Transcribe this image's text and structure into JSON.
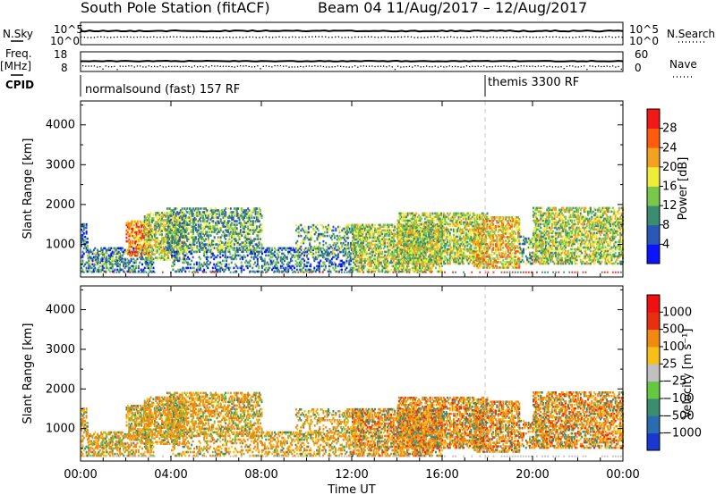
{
  "header": {
    "title": "South Pole Station (fitACF)",
    "beam_date": "Beam 04  11/Aug/2017 – 12/Aug/2017"
  },
  "side_labels": {
    "nsky": "N.Sky",
    "nsearch": "N.Search",
    "freq_top": "Freq.",
    "freq_unit": "[MHz]",
    "nave": "Nave",
    "cpid": "CPID"
  },
  "panel_ticks": {
    "nsky_top": "10^5",
    "nsky_bot": "10^0",
    "nsearch_top": "10^5",
    "nsearch_bot": "10^0",
    "freq_top": "18",
    "freq_bot": "8",
    "nave_top": "60",
    "nave_bot": "0"
  },
  "cpid_labels": {
    "mode1": "normalsound (fast) 157 RF",
    "mode2": "themis 3300 RF"
  },
  "chart_data": [
    {
      "type": "heatmap",
      "panel": "power",
      "ylabel": "Slant Range [km]",
      "ylim": [
        180,
        4600
      ],
      "yticks": [
        1000,
        2000,
        3000,
        4000
      ],
      "xlim": [
        0,
        24
      ],
      "colorbar": {
        "label": "Power [dB]",
        "ticks": [
          "4",
          "8",
          "12",
          "16",
          "20",
          "24",
          "28"
        ],
        "colors": [
          "#0a14ff",
          "#2a58b8",
          "#3c8c70",
          "#78c84a",
          "#f0ec3a",
          "#f4a020",
          "#ff5c10",
          "#f01818"
        ]
      }
    },
    {
      "type": "heatmap",
      "panel": "velocity",
      "ylabel": "Slant Range [km]",
      "ylim": [
        180,
        4600
      ],
      "yticks": [
        1000,
        2000,
        3000,
        4000
      ],
      "xlim": [
        0,
        24
      ],
      "xlabel": "Time UT",
      "xtick_labels": [
        "00:00",
        "04:00",
        "08:00",
        "12:00",
        "16:00",
        "20:00",
        "00:00"
      ],
      "colorbar": {
        "label": "Velocity [m s⁻¹]",
        "ticks": [
          "1000",
          "500",
          "100",
          "25",
          "−25",
          "−100",
          "−500",
          "−1000"
        ],
        "colors": [
          "#1838d0",
          "#2a6cb0",
          "#3c8c70",
          "#66c840",
          "#c0c0c0",
          "#f6bf1a",
          "#f08a10",
          "#e83010",
          "#f01010"
        ]
      }
    }
  ]
}
